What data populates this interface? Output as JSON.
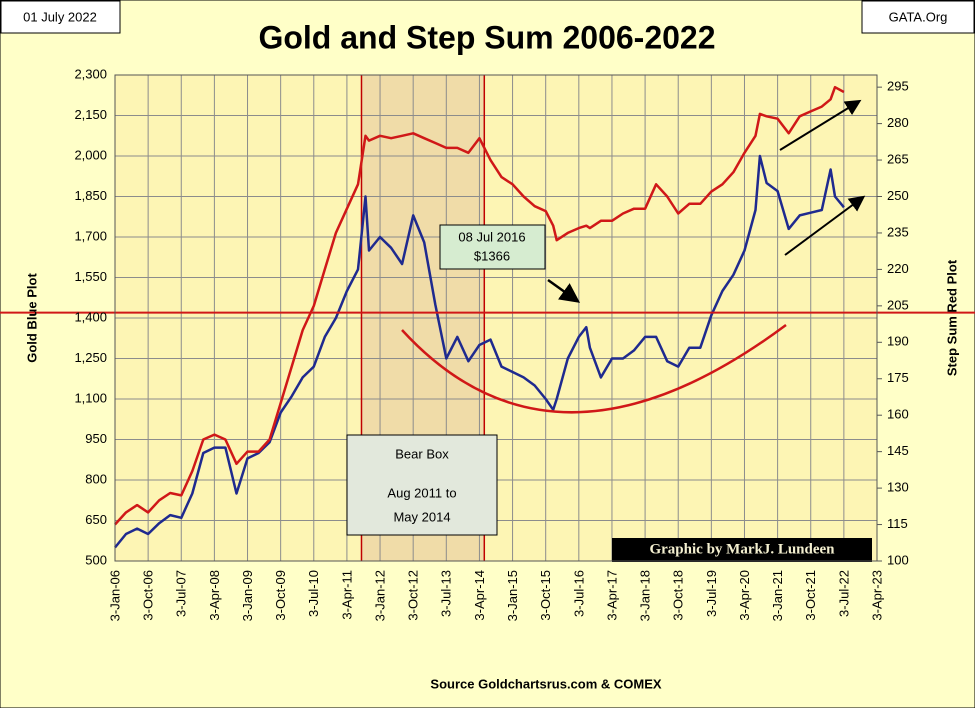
{
  "chart_data": {
    "type": "line",
    "title": "Gold and Step Sum 2006-2022",
    "date_label": "01 July 2022",
    "site_label": "GATA.Org",
    "ylabel": "Gold    Blue Plot",
    "y2label": "Step Sum    Red Plot",
    "source": "Source  Goldchartsrus.com  & COMEX",
    "credit": "Graphic by MarkJ. Lundeen",
    "annotations": {
      "bear_box": [
        "Bear Box",
        "Aug 2011 to",
        "May 2014"
      ],
      "callout": [
        "08 Jul 2016",
        "$1366"
      ]
    },
    "shaded_region": [
      2011.58,
      2014.36
    ],
    "reference_line": 1420,
    "grid": true,
    "xlim": [
      2006,
      2023.25
    ],
    "xticks": [
      {
        "value": 2006.0,
        "label": "3-Jan-06"
      },
      {
        "value": 2006.75,
        "label": "3-Oct-06"
      },
      {
        "value": 2007.5,
        "label": "3-Jul-07"
      },
      {
        "value": 2008.25,
        "label": "3-Apr-08"
      },
      {
        "value": 2009.0,
        "label": "3-Jan-09"
      },
      {
        "value": 2009.75,
        "label": "3-Oct-09"
      },
      {
        "value": 2010.5,
        "label": "3-Jul-10"
      },
      {
        "value": 2011.25,
        "label": "3-Apr-11"
      },
      {
        "value": 2012.0,
        "label": "3-Jan-12"
      },
      {
        "value": 2012.75,
        "label": "3-Oct-12"
      },
      {
        "value": 2013.5,
        "label": "3-Jul-13"
      },
      {
        "value": 2014.25,
        "label": "3-Apr-14"
      },
      {
        "value": 2015.0,
        "label": "3-Jan-15"
      },
      {
        "value": 2015.75,
        "label": "3-Oct-15"
      },
      {
        "value": 2016.5,
        "label": "3-Jul-16"
      },
      {
        "value": 2017.25,
        "label": "3-Apr-17"
      },
      {
        "value": 2018.0,
        "label": "3-Jan-18"
      },
      {
        "value": 2018.75,
        "label": "3-Oct-18"
      },
      {
        "value": 2019.5,
        "label": "3-Jul-19"
      },
      {
        "value": 2020.25,
        "label": "3-Apr-20"
      },
      {
        "value": 2021.0,
        "label": "3-Jan-21"
      },
      {
        "value": 2021.75,
        "label": "3-Oct-21"
      },
      {
        "value": 2022.5,
        "label": "3-Jul-22"
      },
      {
        "value": 2023.25,
        "label": "3-Apr-23"
      }
    ],
    "ylim": [
      500,
      2300
    ],
    "yticks": [
      500,
      650,
      800,
      950,
      {
        "value": 1100,
        "label": "1,100"
      },
      {
        "value": 1250,
        "label": "1,250"
      },
      {
        "value": 1400,
        "label": "1,400"
      },
      {
        "value": 1550,
        "label": "1,550"
      },
      {
        "value": 1700,
        "label": "1,700"
      },
      {
        "value": 1850,
        "label": "1,850"
      },
      {
        "value": 2000,
        "label": "2,000"
      },
      {
        "value": 2150,
        "label": "2,150"
      },
      {
        "value": 2300,
        "label": "2,300"
      }
    ],
    "y2lim": [
      100,
      300
    ],
    "y2ticks": [
      100,
      115,
      130,
      145,
      160,
      175,
      190,
      205,
      220,
      235,
      250,
      265,
      280,
      295
    ],
    "x": [
      2006.0,
      2006.25,
      2006.5,
      2006.75,
      2007.0,
      2007.25,
      2007.5,
      2007.75,
      2008.0,
      2008.25,
      2008.5,
      2008.75,
      2009.0,
      2009.25,
      2009.5,
      2009.75,
      2010.0,
      2010.25,
      2010.5,
      2010.75,
      2011.0,
      2011.25,
      2011.5,
      2011.67,
      2011.75,
      2012.0,
      2012.25,
      2012.5,
      2012.75,
      2013.0,
      2013.25,
      2013.5,
      2013.75,
      2014.0,
      2014.25,
      2014.5,
      2014.75,
      2015.0,
      2015.25,
      2015.5,
      2015.75,
      2015.92,
      2016.0,
      2016.25,
      2016.5,
      2016.67,
      2016.75,
      2017.0,
      2017.25,
      2017.5,
      2017.75,
      2018.0,
      2018.25,
      2018.5,
      2018.75,
      2019.0,
      2019.25,
      2019.5,
      2019.75,
      2020.0,
      2020.25,
      2020.5,
      2020.6,
      2020.75,
      2021.0,
      2021.25,
      2021.5,
      2021.75,
      2022.0,
      2022.2,
      2022.3,
      2022.5
    ],
    "series": [
      {
        "name": "Gold",
        "color": "#1f2a8f",
        "axis": "y",
        "values": [
          550,
          600,
          620,
          600,
          640,
          670,
          660,
          750,
          900,
          920,
          920,
          750,
          880,
          900,
          940,
          1050,
          1110,
          1180,
          1220,
          1330,
          1400,
          1500,
          1580,
          1850,
          1650,
          1700,
          1660,
          1600,
          1780,
          1680,
          1450,
          1250,
          1330,
          1240,
          1300,
          1320,
          1220,
          1200,
          1180,
          1150,
          1100,
          1060,
          1100,
          1250,
          1330,
          1366,
          1290,
          1180,
          1250,
          1250,
          1280,
          1330,
          1330,
          1240,
          1220,
          1290,
          1290,
          1410,
          1500,
          1560,
          1650,
          1800,
          2000,
          1900,
          1870,
          1730,
          1780,
          1790,
          1800,
          1950,
          1850,
          1810
        ]
      },
      {
        "name": "Step Sum",
        "color": "#d01818",
        "axis": "y2",
        "values": [
          115,
          120,
          123,
          120,
          125,
          128,
          127,
          137,
          150,
          152,
          150,
          140,
          145,
          145,
          150,
          165,
          180,
          195,
          205,
          220,
          235,
          245,
          255,
          275,
          273,
          275,
          274,
          275,
          276,
          274,
          272,
          270,
          270,
          268,
          274,
          265,
          258,
          255,
          250,
          246,
          244,
          238,
          232,
          235,
          237,
          238,
          237,
          240,
          240,
          243,
          245,
          245,
          255,
          250,
          243,
          247,
          247,
          252,
          255,
          260,
          268,
          275,
          284,
          283,
          282,
          276,
          283,
          285,
          287,
          290,
          295,
          293
        ]
      }
    ]
  }
}
